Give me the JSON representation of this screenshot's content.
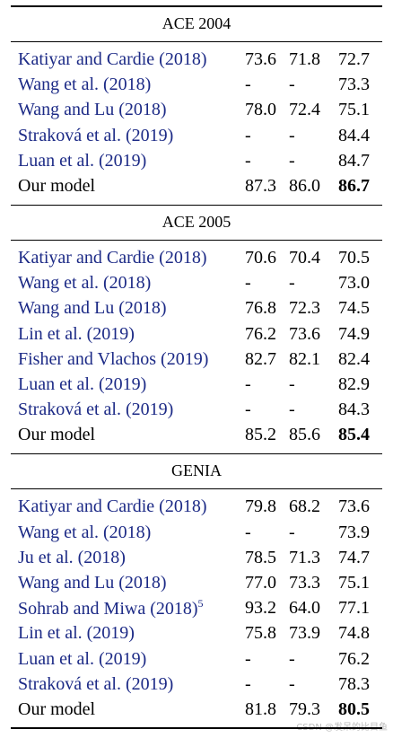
{
  "sections": [
    {
      "title": "ACE 2004",
      "rows": [
        {
          "cells": [
            "Katiyar and Cardie (2018)",
            "73.6",
            "71.8",
            "72.7"
          ]
        },
        {
          "cells": [
            "Wang et al. (2018)",
            "-",
            "-",
            "73.3"
          ]
        },
        {
          "cells": [
            "Wang and Lu (2018)",
            "78.0",
            "72.4",
            "75.1"
          ]
        },
        {
          "cells": [
            "Straková et al. (2019)",
            "-",
            "-",
            "84.4"
          ]
        },
        {
          "cells": [
            "Luan et al. (2019)",
            "-",
            "-",
            "84.7"
          ]
        },
        {
          "cells": [
            "Our model",
            "87.3",
            "86.0",
            "86.7"
          ],
          "bold_last": true,
          "plain_name": true
        }
      ]
    },
    {
      "title": "ACE 2005",
      "rows": [
        {
          "cells": [
            "Katiyar and Cardie (2018)",
            "70.6",
            "70.4",
            "70.5"
          ]
        },
        {
          "cells": [
            "Wang et al. (2018)",
            "-",
            "-",
            "73.0"
          ]
        },
        {
          "cells": [
            "Wang and Lu (2018)",
            "76.8",
            "72.3",
            "74.5"
          ]
        },
        {
          "cells": [
            "Lin et al. (2019)",
            "76.2",
            "73.6",
            "74.9"
          ]
        },
        {
          "cells": [
            "Fisher and Vlachos (2019)",
            "82.7",
            "82.1",
            "82.4"
          ]
        },
        {
          "cells": [
            "Luan et al. (2019)",
            "-",
            "-",
            "82.9"
          ]
        },
        {
          "cells": [
            "Straková et al. (2019)",
            "-",
            "-",
            "84.3"
          ]
        },
        {
          "cells": [
            "Our model",
            "85.2",
            "85.6",
            "85.4"
          ],
          "bold_last": true,
          "plain_name": true
        }
      ]
    },
    {
      "title": "GENIA",
      "rows": [
        {
          "cells": [
            "Katiyar and Cardie (2018)",
            "79.8",
            "68.2",
            "73.6"
          ]
        },
        {
          "cells": [
            "Wang et al. (2018)",
            "-",
            "-",
            "73.9"
          ]
        },
        {
          "cells": [
            "Ju et al. (2018)",
            "78.5",
            "71.3",
            "74.7"
          ]
        },
        {
          "cells": [
            "Wang and Lu (2018)",
            "77.0",
            "73.3",
            "75.1"
          ]
        },
        {
          "cells": [
            "Sohrab and Miwa (2018)",
            "93.2",
            "64.0",
            "77.1"
          ],
          "sup": "5"
        },
        {
          "cells": [
            "Lin et al. (2019)",
            "75.8",
            "73.9",
            "74.8"
          ]
        },
        {
          "cells": [
            "Luan et al. (2019)",
            "-",
            "-",
            "76.2"
          ]
        },
        {
          "cells": [
            "Straková et al. (2019)",
            "-",
            "-",
            "78.3"
          ]
        },
        {
          "cells": [
            "Our model",
            "81.8",
            "79.3",
            "80.5"
          ],
          "bold_last": true,
          "plain_name": true
        }
      ]
    }
  ],
  "watermark": "CSDN @发呆的比目鱼"
}
